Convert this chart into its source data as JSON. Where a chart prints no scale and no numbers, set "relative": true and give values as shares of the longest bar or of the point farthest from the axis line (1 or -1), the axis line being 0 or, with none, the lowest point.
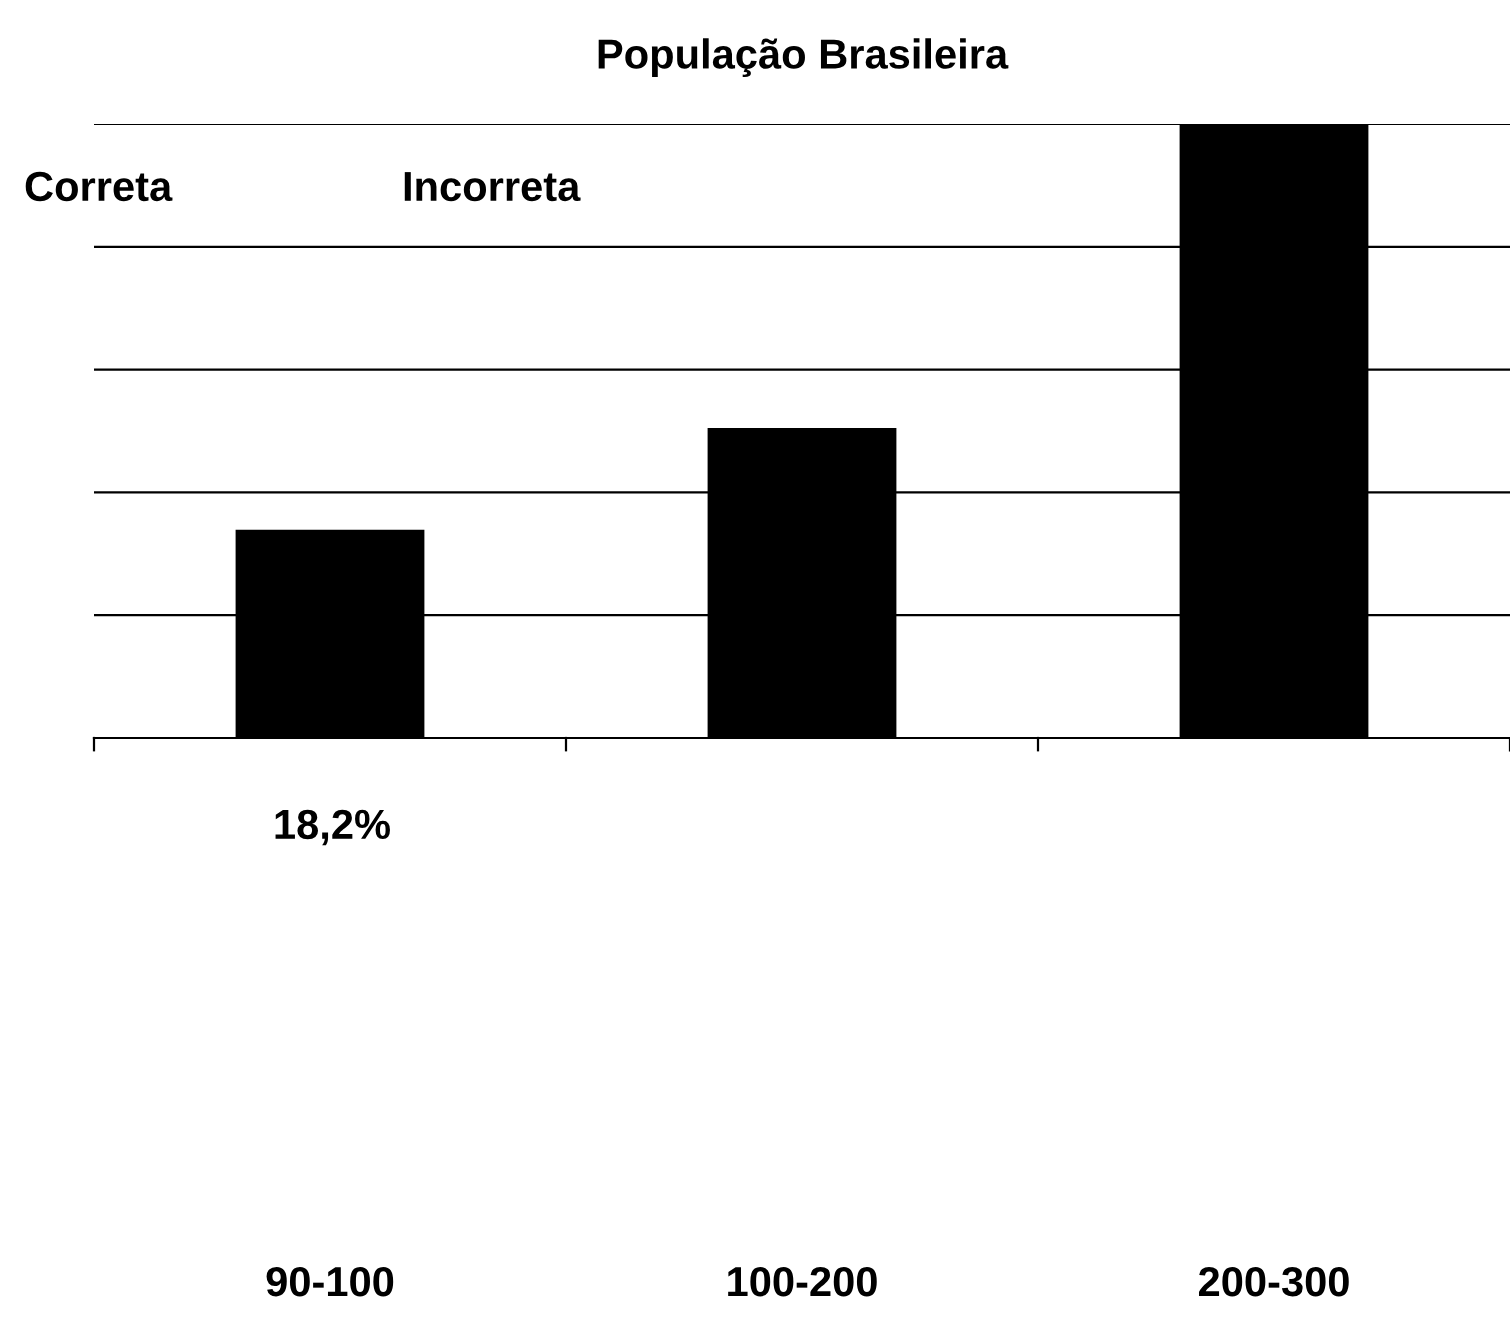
{
  "chart_data": {
    "type": "bar",
    "title": "População Brasileira",
    "categories": [
      "90-100",
      "100-200",
      "200-300"
    ],
    "values": [
      0.339,
      0.505,
      1
    ],
    "color": "#000000",
    "relative": true,
    "grid": "y",
    "tick_labels": "x",
    "annotations": [
      "Correta",
      "Incorreta",
      "18,2%"
    ]
  }
}
